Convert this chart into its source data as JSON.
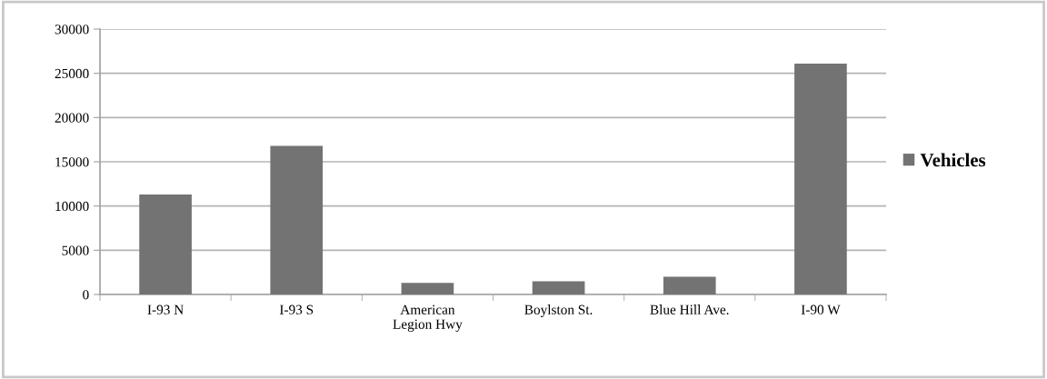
{
  "chart_data": {
    "type": "bar",
    "categories": [
      "I-93 N",
      "I-93 S",
      "American Legion Hwy",
      "Boylston St.",
      "Blue Hill Ave.",
      "I-90 W"
    ],
    "series": [
      {
        "name": "Vehicles",
        "color": "#737373",
        "values": [
          11300,
          16800,
          1300,
          1500,
          2000,
          26100
        ]
      }
    ],
    "ylim": [
      0,
      30000
    ],
    "yticks": [
      0,
      5000,
      10000,
      15000,
      20000,
      25000,
      30000
    ],
    "grid": "y",
    "legend": "right"
  }
}
